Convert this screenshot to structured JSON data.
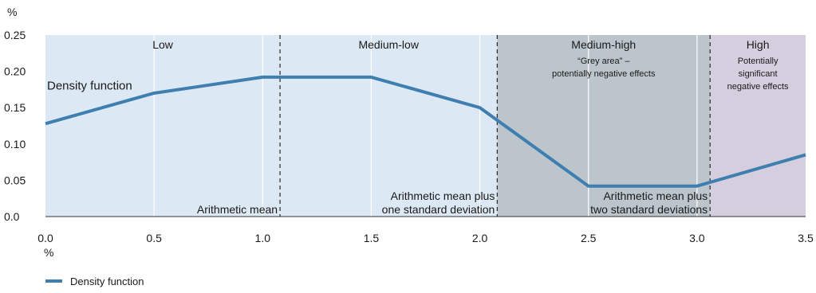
{
  "chart_data": {
    "type": "line",
    "x_unit": "%",
    "y_unit": "%",
    "xlim": [
      0,
      3.5
    ],
    "ylim": [
      0,
      0.25
    ],
    "x_ticks": [
      "0.0",
      "0.5",
      "1.0",
      "1.5",
      "2.0",
      "2.5",
      "3.0",
      "3.5"
    ],
    "y_ticks": [
      "0.0",
      "0.05",
      "0.10",
      "0.15",
      "0.20",
      "0.25"
    ],
    "grid": "vertical",
    "series": [
      {
        "name": "Density function",
        "color": "#3f7fb0",
        "x": [
          0.0,
          0.5,
          1.0,
          1.5,
          2.0,
          2.5,
          3.0,
          3.5
        ],
        "y": [
          0.128,
          0.17,
          0.192,
          0.192,
          0.15,
          0.042,
          0.042,
          0.085
        ]
      }
    ],
    "zones": [
      {
        "title": "Low",
        "subtitle": [],
        "from": 0.0,
        "to": 1.08,
        "color": "#dce8f3"
      },
      {
        "title": "Medium-low",
        "subtitle": [],
        "from": 1.08,
        "to": 2.08,
        "color": "#dce8f3"
      },
      {
        "title": "Medium-high",
        "subtitle": [
          "“Grey area” –",
          "potentially negative effects"
        ],
        "from": 2.08,
        "to": 3.06,
        "color": "#bcc5cc"
      },
      {
        "title": "High",
        "subtitle": [
          "Potentially",
          "significant",
          "negative effects"
        ],
        "from": 3.06,
        "to": 3.5,
        "color": "#d5cede"
      }
    ],
    "thresholds": [
      {
        "x": 1.08,
        "label": [
          "Arithmetic mean"
        ]
      },
      {
        "x": 2.08,
        "label": [
          "Arithmetic mean plus",
          "one standard deviation"
        ]
      },
      {
        "x": 3.06,
        "label": [
          "Arithmetic mean plus",
          "two standard deviations"
        ]
      }
    ],
    "series_annotation": "Density function",
    "legend": {
      "position": "bottom-left",
      "entries": [
        "Density function"
      ]
    }
  }
}
